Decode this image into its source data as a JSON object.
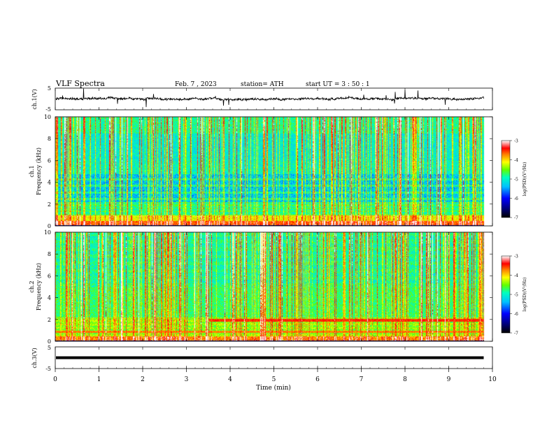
{
  "header": {
    "title": "VLF  Spectra",
    "date": "Feb. 7  , 2023",
    "station": "station= ATH",
    "start_ut": "start  UT  =   3  : 50 : 1"
  },
  "chart_data": [
    {
      "type": "line",
      "panel": "ch1-waveform",
      "ylabel": "ch.1(V)",
      "yticks": [
        "5",
        "-5"
      ],
      "ylim": [
        -5,
        5
      ],
      "xlim": [
        0,
        10
      ],
      "x_data_end_min": 9.8,
      "mean_value": 0,
      "color": "#000000"
    },
    {
      "type": "heatmap",
      "panel": "ch1-spectrogram",
      "ylabel_top": "ch.1",
      "ylabel": "Frequency (kHz)",
      "yticks": [
        "0",
        "2",
        "4",
        "6",
        "8",
        "10"
      ],
      "ylim": [
        0,
        10
      ],
      "xlim": [
        0,
        10
      ],
      "x_data_end_min": 9.8,
      "colorbar": {
        "label": "log(PSD)(V²/Hz)",
        "ticks": [
          "-3",
          "-4",
          "-5",
          "-6",
          "-7"
        ],
        "range": [
          -7,
          -3
        ]
      }
    },
    {
      "type": "heatmap",
      "panel": "ch2-spectrogram",
      "ylabel_top": "ch.2",
      "ylabel": "Frequency (kHz)",
      "yticks": [
        "0",
        "2",
        "4",
        "6",
        "8",
        "10"
      ],
      "ylim": [
        0,
        10
      ],
      "xlim": [
        0,
        10
      ],
      "x_data_end_min": 9.8,
      "colorbar": {
        "label": "log(PSD)(V²/Hz)",
        "ticks": [
          "-3",
          "-4",
          "-5",
          "-6",
          "-7"
        ],
        "range": [
          -7,
          -3
        ]
      }
    },
    {
      "type": "line",
      "panel": "ch3-waveform",
      "ylabel": "ch.3(V)",
      "yticks": [
        "5",
        "-5"
      ],
      "ylim": [
        -5,
        5
      ],
      "xlim": [
        0,
        10
      ],
      "x_data_end_min": 9.8,
      "constant_value": 0,
      "color": "#000000"
    }
  ],
  "xaxis": {
    "label": "Time  (min)",
    "ticks": [
      "0",
      "1",
      "2",
      "3",
      "4",
      "5",
      "6",
      "7",
      "8",
      "9",
      "10"
    ]
  },
  "colors": {
    "colormap": [
      "#000080",
      "#0000ff",
      "#00c0ff",
      "#00ffc0",
      "#60ff00",
      "#ffff00",
      "#ff8000",
      "#ff0000",
      "#ffffff"
    ]
  }
}
